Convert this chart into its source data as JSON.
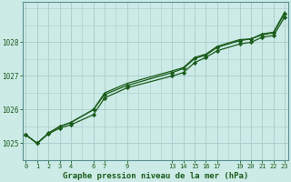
{
  "title": "Graphe pression niveau de la mer (hPa)",
  "bg_color": "#cceae6",
  "plot_bg_color": "#cceae6",
  "grid_color": "#aacccc",
  "line_color": "#1a5c1a",
  "marker_color": "#1a5c1a",
  "border_color": "#5a9090",
  "xlim": [
    -0.3,
    23.3
  ],
  "ylim": [
    1024.5,
    1029.2
  ],
  "yticks": [
    1025,
    1026,
    1027,
    1028
  ],
  "xtick_positions": [
    0,
    1,
    2,
    3,
    4,
    6,
    7,
    9,
    13,
    14,
    15,
    16,
    17,
    19,
    20,
    21,
    22,
    23
  ],
  "xtick_labels": [
    "0",
    "1",
    "2",
    "3",
    "4",
    "6",
    "7",
    "9",
    "13",
    "14",
    "15",
    "16",
    "17",
    "19",
    "20",
    "21",
    "22",
    "23"
  ],
  "hours": [
    0,
    1,
    2,
    3,
    4,
    6,
    7,
    9,
    13,
    14,
    15,
    16,
    17,
    19,
    20,
    21,
    22,
    23
  ],
  "pressure1": [
    1025.25,
    1025.0,
    1025.28,
    1025.45,
    1025.55,
    1025.85,
    1026.35,
    1026.65,
    1027.0,
    1027.1,
    1027.4,
    1027.55,
    1027.75,
    1027.95,
    1028.0,
    1028.15,
    1028.2,
    1028.75
  ],
  "pressure2": [
    1025.25,
    1025.0,
    1025.3,
    1025.5,
    1025.62,
    1026.0,
    1026.45,
    1026.72,
    1027.1,
    1027.22,
    1027.52,
    1027.62,
    1027.85,
    1028.05,
    1028.1,
    1028.22,
    1028.28,
    1028.85
  ],
  "pressure3": [
    1025.25,
    1025.0,
    1025.3,
    1025.5,
    1025.62,
    1026.0,
    1026.5,
    1026.78,
    1027.15,
    1027.25,
    1027.55,
    1027.65,
    1027.88,
    1028.08,
    1028.1,
    1028.25,
    1028.3,
    1028.9
  ]
}
